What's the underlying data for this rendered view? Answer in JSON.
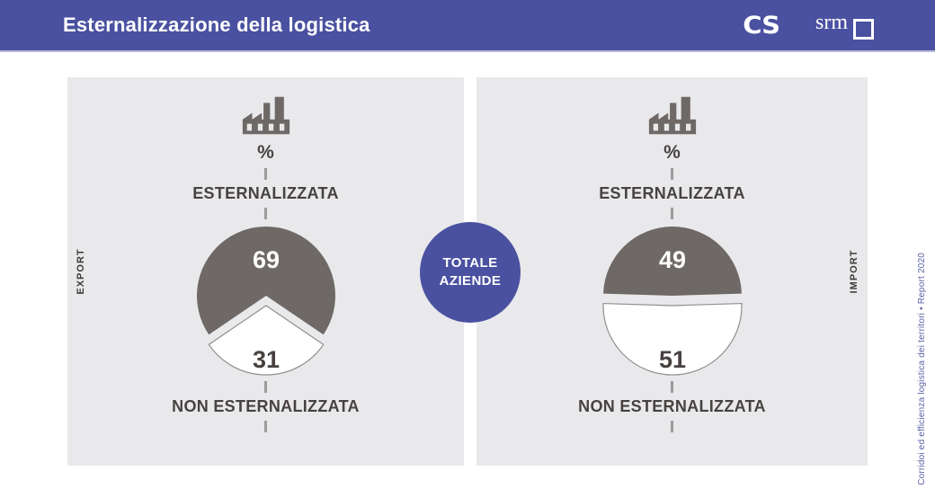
{
  "header": {
    "title": "Esternalizzazione della logistica",
    "cs_logo_text": "CS",
    "srm_logo_text": "srm"
  },
  "badge": {
    "lines": [
      "TOTALE",
      "AZIENDE"
    ]
  },
  "footnote": "Corridoi ed efficienza logistica dei territori • Report 2020",
  "colors": {
    "purple": "#4a51a0",
    "panel_gray": "#e9e9eb",
    "dark_slice": "#6e6966",
    "white_slice": "#ffffff",
    "white_slice_stroke": "#8f8f8f",
    "text_dark": "#474240",
    "value_on_dark": "#ffffff"
  },
  "chart_data": [
    {
      "type": "pie",
      "title": "EXPORT",
      "pct_symbol": "%",
      "top_label": "ESTERNALIZZATA",
      "bottom_label": "NON ESTERNALIZZATA",
      "legend_position": "around",
      "slices": [
        {
          "name": "ESTERNALIZZATA",
          "value": 69,
          "color": "#6e6966",
          "value_color": "#ffffff"
        },
        {
          "name": "NON ESTERNALIZZATA",
          "value": 31,
          "color": "#ffffff",
          "value_color": "#474240",
          "exploded": true
        }
      ]
    },
    {
      "type": "pie",
      "title": "IMPORT",
      "pct_symbol": "%",
      "top_label": "ESTERNALIZZATA",
      "bottom_label": "NON ESTERNALIZZATA",
      "legend_position": "around",
      "slices": [
        {
          "name": "ESTERNALIZZATA",
          "value": 49,
          "color": "#6e6966",
          "value_color": "#ffffff"
        },
        {
          "name": "NON ESTERNALIZZATA",
          "value": 51,
          "color": "#ffffff",
          "value_color": "#474240",
          "exploded": true
        }
      ]
    }
  ]
}
